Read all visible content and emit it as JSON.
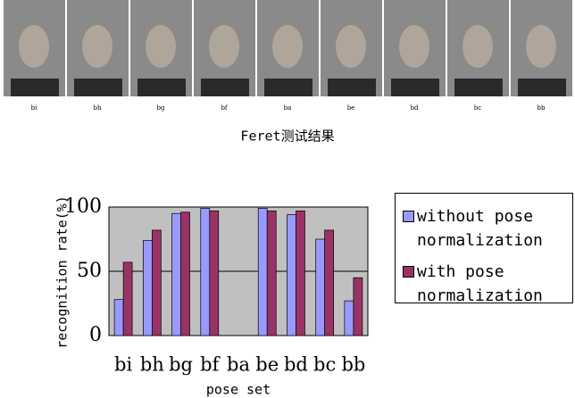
{
  "photo_strip": {
    "labels": [
      "bi",
      "bh",
      "bg",
      "bf",
      "ba",
      "be",
      "bd",
      "bc",
      "bb"
    ],
    "caption": "Feret测试结果"
  },
  "chart_data": {
    "type": "bar",
    "x_label": "pose set",
    "y_label": "recognition rate(%)",
    "categories": [
      "bi",
      "bh",
      "bg",
      "bf",
      "ba",
      "be",
      "bd",
      "bc",
      "bb"
    ],
    "series": [
      {
        "name": "without pose normalization",
        "color": "#9999ff",
        "values": [
          28,
          74,
          95,
          99,
          0,
          99,
          94,
          75,
          27
        ]
      },
      {
        "name": "with pose normalization",
        "color": "#993366",
        "values": [
          57,
          82,
          96,
          97,
          0,
          97,
          97,
          82,
          45
        ]
      }
    ],
    "ylim": [
      0,
      100
    ],
    "yticks": [
      0,
      50,
      100
    ],
    "grid": true,
    "legend": "right"
  }
}
